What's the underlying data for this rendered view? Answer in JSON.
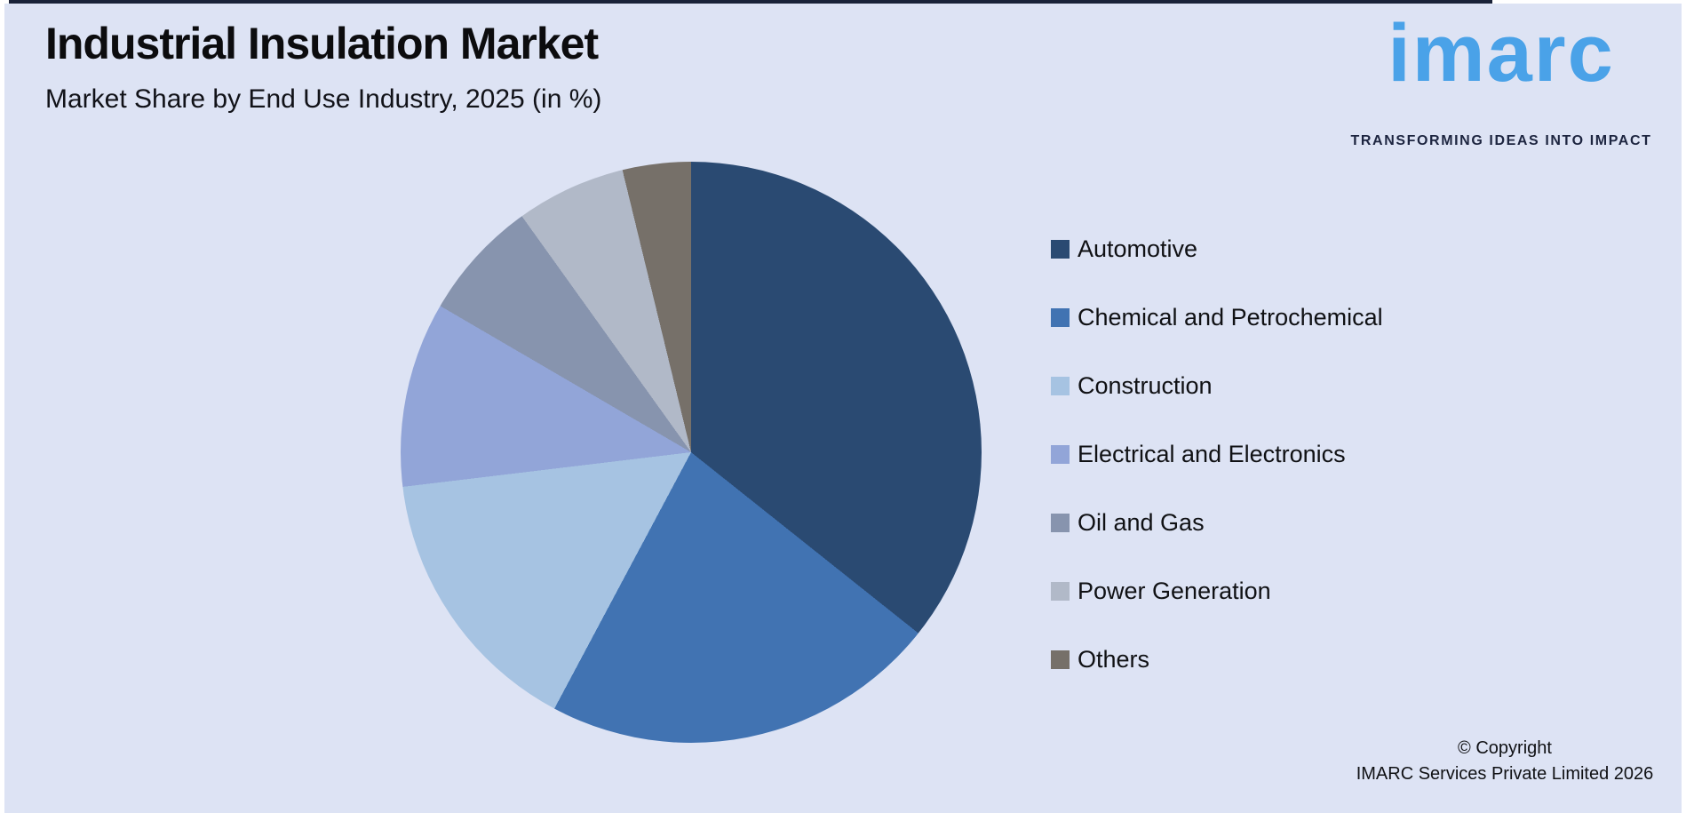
{
  "header": {
    "title": "Industrial Insulation Market",
    "subtitle": "Market Share by End Use Industry, 2025 (in %)"
  },
  "logo": {
    "brand": "imarc",
    "tagline": "TRANSFORMING IDEAS INTO IMPACT",
    "brand_color": "#4aa2e8",
    "tagline_color": "#1d2540"
  },
  "chart_data": {
    "type": "pie",
    "title": "Industrial Insulation Market",
    "subtitle": "Market Share by End Use Industry, 2025 (in %)",
    "unit": "%",
    "start_angle_deg": 0,
    "direction": "clockwise",
    "legend_position": "right",
    "values_labeled_on_chart": false,
    "slices": [
      {
        "label": "Automotive",
        "value": 35.7,
        "color": "#2a4a72"
      },
      {
        "label": "Chemical and Petrochemical",
        "value": 22.1,
        "color": "#4173b2"
      },
      {
        "label": "Construction",
        "value": 15.3,
        "color": "#a6c3e2"
      },
      {
        "label": "Electrical and Electronics",
        "value": 10.3,
        "color": "#92a5d8"
      },
      {
        "label": "Oil and Gas",
        "value": 6.7,
        "color": "#8794ae"
      },
      {
        "label": "Power Generation",
        "value": 6.1,
        "color": "#b1b9c8"
      },
      {
        "label": "Others",
        "value": 3.8,
        "color": "#767069"
      }
    ]
  },
  "footer": {
    "copyright_line1": "© Copyright",
    "copyright_line2": "IMARC Services Private Limited 2026"
  }
}
